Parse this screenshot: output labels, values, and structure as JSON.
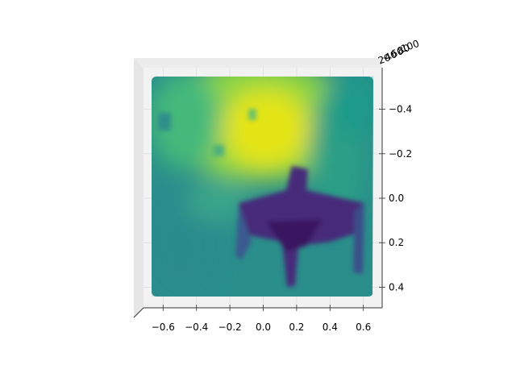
{
  "chart_data": {
    "type": "scatter",
    "projection": "3d",
    "title": "",
    "xlabel": "",
    "ylabel": "",
    "zlabel": "",
    "x_ticks": [
      -0.6,
      -0.4,
      -0.2,
      0.0,
      0.2,
      0.4,
      0.6
    ],
    "x_tick_labels": [
      "−0.6",
      "−0.4",
      "−0.2",
      "0.0",
      "0.2",
      "0.4",
      "0.6"
    ],
    "xlim": [
      -0.72,
      0.7
    ],
    "y_ticks": [
      -0.4,
      -0.2,
      0.0,
      0.2,
      0.4
    ],
    "y_tick_labels": [
      "−0.4",
      "−0.2",
      "0.0",
      "0.2",
      "0.4"
    ],
    "ylim": [
      -0.53,
      0.53
    ],
    "z_tick_labels": [
      "100",
      "80",
      "60",
      "40",
      "20"
    ],
    "colormap": "viridis",
    "colormap_stops": [
      "#440154",
      "#3b528b",
      "#21918c",
      "#5ec962",
      "#fde725"
    ],
    "grid": true
  }
}
